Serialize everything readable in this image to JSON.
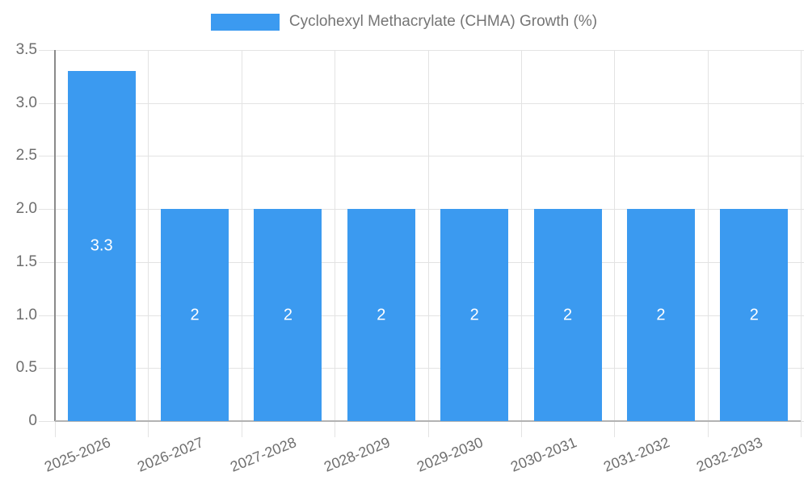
{
  "chart_data": {
    "type": "bar",
    "title": "",
    "legend": {
      "label": "Cyclohexyl Methacrylate (CHMA) Growth (%)",
      "position": "top"
    },
    "categories": [
      "2025-2026",
      "2026-2027",
      "2027-2028",
      "2028-2029",
      "2029-2030",
      "2030-2031",
      "2031-2032",
      "2032-2033"
    ],
    "values": [
      3.3,
      2,
      2,
      2,
      2,
      2,
      2,
      2
    ],
    "bar_labels": [
      "3.3",
      "2",
      "2",
      "2",
      "2",
      "2",
      "2",
      "2"
    ],
    "xlabel": "",
    "ylabel": "",
    "ylim": [
      0,
      3.5
    ],
    "y_ticks": [
      {
        "value": 0,
        "label": "0"
      },
      {
        "value": 0.5,
        "label": "0.5"
      },
      {
        "value": 1,
        "label": "1.0"
      },
      {
        "value": 1.5,
        "label": "1.5"
      },
      {
        "value": 2,
        "label": "2.0"
      },
      {
        "value": 2.5,
        "label": "2.5"
      },
      {
        "value": 3,
        "label": "3.0"
      },
      {
        "value": 3.5,
        "label": "3.5"
      }
    ],
    "grid": true,
    "colors": {
      "bar": "#3b9af0",
      "grid": "#e3e3e3",
      "axis_y": "#8a8a8a",
      "axis_x": "#b3b3b3",
      "tick_text": "#6e6e6e",
      "legend_text": "#757575",
      "bar_label_text": "#ffffff"
    }
  }
}
